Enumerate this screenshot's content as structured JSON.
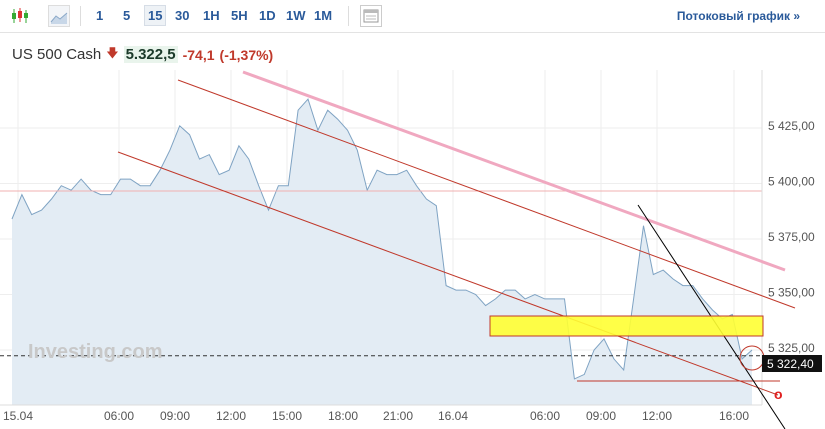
{
  "toolbar": {
    "chart_types": [
      "candlestick-icon",
      "area-chart-icon"
    ],
    "timeframes": [
      "1",
      "5",
      "15",
      "30",
      "1H",
      "5H",
      "1D",
      "1W",
      "1M"
    ],
    "active_timeframe": "15",
    "layout_icon": "layout-icon",
    "stream_label": "Потоковый график »"
  },
  "header": {
    "instrument": "US 500 Cash",
    "direction": "down",
    "price": "5.322,5",
    "change": "-74,1",
    "change_pct": "(-1,37%)",
    "down_color": "#c0392b"
  },
  "chart_data": {
    "type": "area",
    "ylim": [
      5300,
      5460
    ],
    "y_ticks": [
      "5 425,00",
      "5 400,00",
      "5 375,00",
      "5 350,00",
      "5 325,00"
    ],
    "y_tick_values": [
      5425,
      5400,
      5375,
      5350,
      5325
    ],
    "x_ticks": [
      "15.04",
      "06:00",
      "09:00",
      "12:00",
      "15:00",
      "18:00",
      "21:00",
      "16.04",
      "06:00",
      "09:00",
      "12:00",
      "16:00"
    ],
    "last_value_label": "5 322,40",
    "last_value": 5322.4,
    "previous_close": 5396.6,
    "values": [
      5384,
      5395,
      5386,
      5388,
      5393,
      5399,
      5397,
      5402,
      5397,
      5395,
      5395,
      5402,
      5402,
      5399,
      5399,
      5406,
      5415,
      5426,
      5422,
      5411,
      5413,
      5404,
      5406,
      5417,
      5411,
      5399,
      5388,
      5399,
      5399,
      5433,
      5438,
      5424,
      5433,
      5429,
      5424,
      5415,
      5397,
      5406,
      5404,
      5404,
      5406,
      5399,
      5393,
      5390,
      5354,
      5352,
      5352,
      5350,
      5345,
      5348,
      5352,
      5352,
      5348,
      5350,
      5348,
      5348,
      5348,
      5312,
      5314,
      5325,
      5330,
      5321,
      5316,
      5348,
      5381,
      5359,
      5361,
      5357,
      5354,
      5354,
      5348,
      5343,
      5339,
      5341,
      5321,
      5325
    ],
    "line_color": "#7fa3c3",
    "fill_color": "#e3ecf4",
    "watermark": "Investing.com"
  }
}
